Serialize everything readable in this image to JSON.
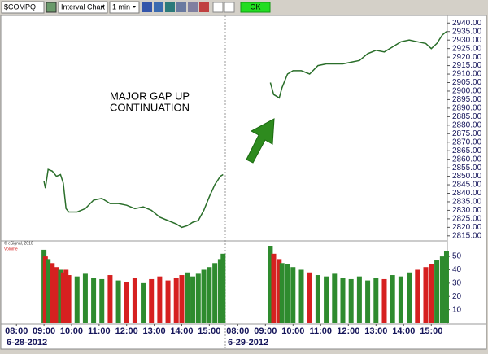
{
  "toolbar": {
    "symbol": "$COMPQ",
    "chart_type": "Interval Chart",
    "interval": "1 min",
    "ok": "OK"
  },
  "chart_data": {
    "type": "line",
    "annotation": [
      "MAJOR GAP UP",
      "CONTINUATION"
    ],
    "source": "© eSignal, 2010",
    "volume_name": "Volume",
    "color": "#2a6e2a",
    "up_color": "#2e8b2e",
    "down_color": "#d62020",
    "xlim": [
      7.55,
      15.58
    ],
    "xticks": [
      {
        "value": 8,
        "label": "08:00"
      },
      {
        "value": 9,
        "label": "09:00"
      },
      {
        "value": 10,
        "label": "10:00"
      },
      {
        "value": 11,
        "label": "11:00"
      },
      {
        "value": 12,
        "label": "12:00"
      },
      {
        "value": 13,
        "label": "13:00"
      },
      {
        "value": 14,
        "label": "14:00"
      },
      {
        "value": 15,
        "label": "15:00"
      }
    ],
    "ylim": [
      2813,
      2943
    ],
    "yticks": [
      {
        "value": 2815,
        "label": "2815.00"
      },
      {
        "value": 2820,
        "label": "2820.00"
      },
      {
        "value": 2825,
        "label": "2825.00"
      },
      {
        "value": 2830,
        "label": "2830.00"
      },
      {
        "value": 2835,
        "label": "2835.00"
      },
      {
        "value": 2840,
        "label": "2840.00"
      },
      {
        "value": 2845,
        "label": "2845.00"
      },
      {
        "value": 2850,
        "label": "2850.00"
      },
      {
        "value": 2855,
        "label": "2855.00"
      },
      {
        "value": 2860,
        "label": "2860.00"
      },
      {
        "value": 2865,
        "label": "2865.00"
      },
      {
        "value": 2870,
        "label": "2870.00"
      },
      {
        "value": 2875,
        "label": "2875.00"
      },
      {
        "value": 2880,
        "label": "2880.00"
      },
      {
        "value": 2885,
        "label": "2885.00"
      },
      {
        "value": 2890,
        "label": "2890.00"
      },
      {
        "value": 2895,
        "label": "2895.00"
      },
      {
        "value": 2900,
        "label": "2900.00"
      },
      {
        "value": 2905,
        "label": "2905.00"
      },
      {
        "value": 2910,
        "label": "2910.00"
      },
      {
        "value": 2915,
        "label": "2915.00"
      },
      {
        "value": 2920,
        "label": "2920.00"
      },
      {
        "value": 2925,
        "label": "2925.00"
      },
      {
        "value": 2930,
        "label": "2930.00"
      },
      {
        "value": 2935,
        "label": "2935.00"
      },
      {
        "value": 2940,
        "label": "2940.00"
      }
    ],
    "y2lim": [
      0,
      58
    ],
    "y2ticks": [
      10,
      20,
      30,
      40,
      50
    ],
    "days": [
      {
        "date": "6-28-2012",
        "x": [
          9.0,
          9.05,
          9.15,
          9.3,
          9.45,
          9.6,
          9.7,
          9.8,
          9.9,
          10.2,
          10.5,
          10.8,
          11.1,
          11.4,
          11.7,
          12.0,
          12.3,
          12.6,
          12.9,
          13.2,
          13.5,
          13.8,
          14.0,
          14.2,
          14.4,
          14.6,
          14.8,
          15.0,
          15.2,
          15.4,
          15.5
        ],
        "values": [
          2847,
          2843,
          2854,
          2853,
          2850,
          2851,
          2846,
          2831,
          2829,
          2829,
          2831,
          2836,
          2837,
          2834,
          2834,
          2833,
          2831,
          2832,
          2830,
          2826,
          2824,
          2822,
          2820,
          2821,
          2823,
          2824,
          2830,
          2838,
          2845,
          2850,
          2851
        ],
        "volume": [
          55,
          50,
          48,
          45,
          42,
          40,
          38,
          40,
          36,
          35,
          37,
          34,
          33,
          36,
          32,
          31,
          34,
          30,
          33,
          35,
          32,
          34,
          36,
          38,
          35,
          37,
          40,
          42,
          45,
          48,
          52
        ]
      },
      {
        "date": "6-29-2012",
        "x": [
          9.18,
          9.3,
          9.5,
          9.6,
          9.8,
          10.0,
          10.3,
          10.6,
          10.9,
          11.2,
          11.5,
          11.8,
          12.1,
          12.4,
          12.7,
          13.0,
          13.3,
          13.6,
          13.9,
          14.2,
          14.5,
          14.8,
          15.0,
          15.2,
          15.4,
          15.55
        ],
        "values": [
          2905,
          2898,
          2896,
          2902,
          2910,
          2912,
          2912,
          2910,
          2915,
          2916,
          2916,
          2916,
          2917,
          2918,
          2922,
          2924,
          2923,
          2926,
          2929,
          2930,
          2929,
          2928,
          2925,
          2928,
          2933,
          2935
        ],
        "volume": [
          58,
          52,
          48,
          45,
          44,
          42,
          40,
          38,
          36,
          35,
          37,
          34,
          33,
          35,
          32,
          34,
          33,
          36,
          35,
          38,
          40,
          42,
          44,
          47,
          50,
          54
        ]
      }
    ]
  }
}
